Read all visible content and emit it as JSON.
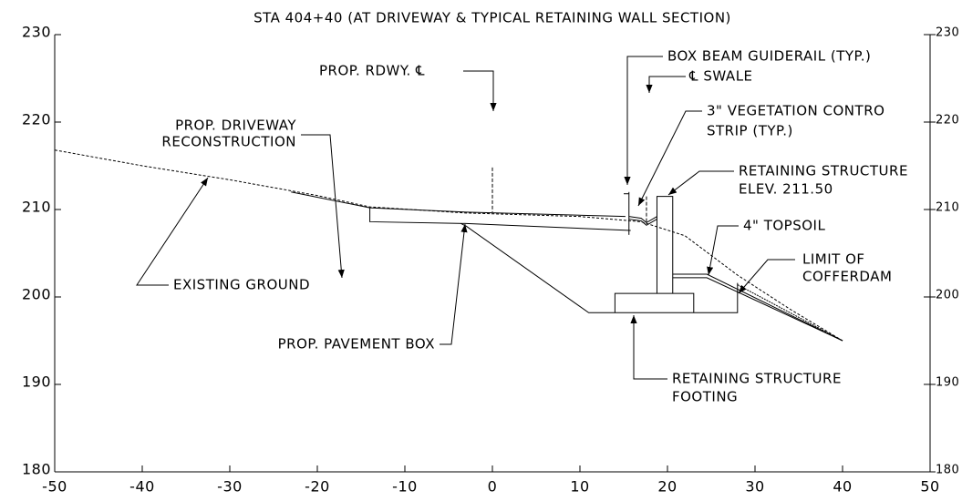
{
  "title": "STA 404+40 (AT DRIVEWAY & TYPICAL RETAINING WALL SECTION)",
  "axes": {
    "xticks": [
      -50,
      -40,
      -30,
      -20,
      -10,
      0,
      10,
      20,
      30,
      40,
      50
    ],
    "yticks": [
      180,
      190,
      200,
      210,
      220,
      230
    ]
  },
  "labels": {
    "guiderail": "BOX BEAM GUIDERAIL (TYP.)",
    "swale": "℄ SWALE",
    "roadway_cl": "PROP. RDWY. ℄",
    "vegetation": [
      "3\" VEGETATION CONTRO",
      "STRIP (TYP.)"
    ],
    "retaining_structure": [
      "RETAINING STRUCTURE",
      "ELEV. 211.50"
    ],
    "topsoil": "4\" TOPSOIL",
    "cofferdam": [
      "LIMIT OF",
      "COFFERDAM"
    ],
    "driveway": [
      "PROP. DRIVEWAY",
      "RECONSTRUCTION"
    ],
    "existing_ground": "EXISTING GROUND",
    "pavement_box": "PROP. PAVEMENT BOX",
    "footing": [
      "RETAINING STRUCTURE",
      "FOOTING"
    ]
  }
}
